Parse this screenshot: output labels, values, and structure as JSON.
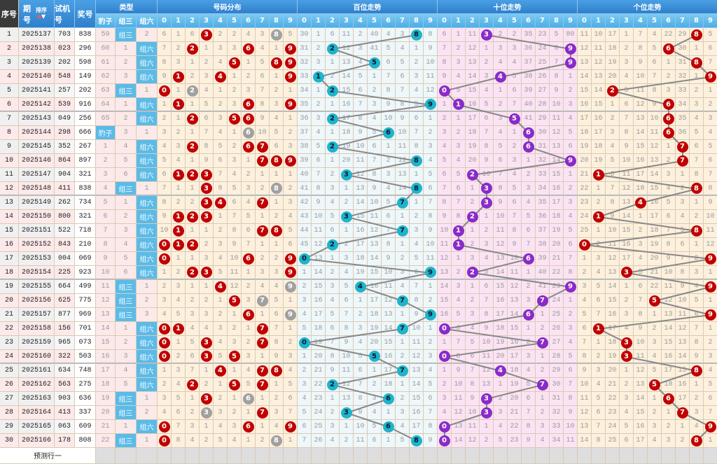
{
  "header": {
    "seq": "序号",
    "issue": "期号",
    "sort": "排序",
    "test_no": "试机号",
    "prize_no": "奖号",
    "type_group": "类型",
    "types": [
      "豹子",
      "组三",
      "组六"
    ],
    "distribution": "号码分布",
    "hundreds": "百位走势",
    "tens": "十位走势",
    "units": "个位走势",
    "digits": [
      "0",
      "1",
      "2",
      "3",
      "4",
      "5",
      "6",
      "7",
      "8",
      "9"
    ]
  },
  "rows": [
    {
      "seq": "1",
      "issue": "2025137",
      "test": "703",
      "prize": "838"
    },
    {
      "seq": "2",
      "issue": "2025138",
      "test": "023",
      "prize": "296"
    },
    {
      "seq": "3",
      "issue": "2025139",
      "test": "202",
      "prize": "598"
    },
    {
      "seq": "4",
      "issue": "2025140",
      "test": "548",
      "prize": "149"
    },
    {
      "seq": "5",
      "issue": "2025141",
      "test": "257",
      "prize": "202"
    },
    {
      "seq": "6",
      "issue": "2025142",
      "test": "539",
      "prize": "916"
    },
    {
      "seq": "7",
      "issue": "2025143",
      "test": "049",
      "prize": "256"
    },
    {
      "seq": "8",
      "issue": "2025144",
      "test": "298",
      "prize": "666"
    },
    {
      "seq": "9",
      "issue": "2025145",
      "test": "352",
      "prize": "267"
    },
    {
      "seq": "10",
      "issue": "2025146",
      "test": "864",
      "prize": "897"
    },
    {
      "seq": "11",
      "issue": "2025147",
      "test": "904",
      "prize": "321"
    },
    {
      "seq": "12",
      "issue": "2025148",
      "test": "411",
      "prize": "838"
    },
    {
      "seq": "13",
      "issue": "2025149",
      "test": "262",
      "prize": "734"
    },
    {
      "seq": "14",
      "issue": "2025150",
      "test": "800",
      "prize": "321"
    },
    {
      "seq": "15",
      "issue": "2025151",
      "test": "522",
      "prize": "718"
    },
    {
      "seq": "16",
      "issue": "2025152",
      "test": "843",
      "prize": "210"
    },
    {
      "seq": "17",
      "issue": "2025153",
      "test": "004",
      "prize": "069"
    },
    {
      "seq": "18",
      "issue": "2025154",
      "test": "225",
      "prize": "923"
    },
    {
      "seq": "19",
      "issue": "2025155",
      "test": "664",
      "prize": "499"
    },
    {
      "seq": "20",
      "issue": "2025156",
      "test": "625",
      "prize": "775"
    },
    {
      "seq": "21",
      "issue": "2025157",
      "test": "877",
      "prize": "969"
    },
    {
      "seq": "22",
      "issue": "2025158",
      "test": "156",
      "prize": "701"
    },
    {
      "seq": "23",
      "issue": "2025159",
      "test": "965",
      "prize": "073"
    },
    {
      "seq": "24",
      "issue": "2025160",
      "test": "322",
      "prize": "503"
    },
    {
      "seq": "25",
      "issue": "2025161",
      "test": "634",
      "prize": "748"
    },
    {
      "seq": "26",
      "issue": "2025162",
      "test": "563",
      "prize": "275"
    },
    {
      "seq": "27",
      "issue": "2025163",
      "test": "903",
      "prize": "636"
    },
    {
      "seq": "28",
      "issue": "2025164",
      "test": "413",
      "prize": "337"
    },
    {
      "seq": "29",
      "issue": "2025165",
      "test": "063",
      "prize": "609"
    },
    {
      "seq": "30",
      "issue": "2025166",
      "test": "178",
      "prize": "808"
    }
  ],
  "first_row_misses": {
    "types": [
      59,
      0,
      2
    ],
    "distribution": [
      6,
      1,
      6,
      0,
      2,
      2,
      4,
      3,
      0,
      5
    ],
    "hundreds": [
      30,
      1,
      6,
      11,
      2,
      40,
      4,
      3,
      0,
      8
    ],
    "tens": [
      6,
      1,
      11,
      0,
      2,
      2,
      35,
      23,
      5,
      80
    ],
    "units": [
      11,
      10,
      17,
      1,
      7,
      4,
      22,
      29,
      0,
      5
    ]
  },
  "footer": {
    "predict_label": "预测行一"
  },
  "colors": {
    "header_blue": "#2f7fcc",
    "dist_ball": "#c00000",
    "repeat_ball": "#a0a0a0",
    "hundreds_ball": "#1fb3cc",
    "tens_ball": "#8a2bc8",
    "units_ball": "#c00000",
    "dist_bg": "#fdf0dc",
    "hundreds_bg": "#eef7fa",
    "tens_bg": "#fbe3f4",
    "units_bg": "#fdf0dc",
    "trend_line": "#888888"
  }
}
